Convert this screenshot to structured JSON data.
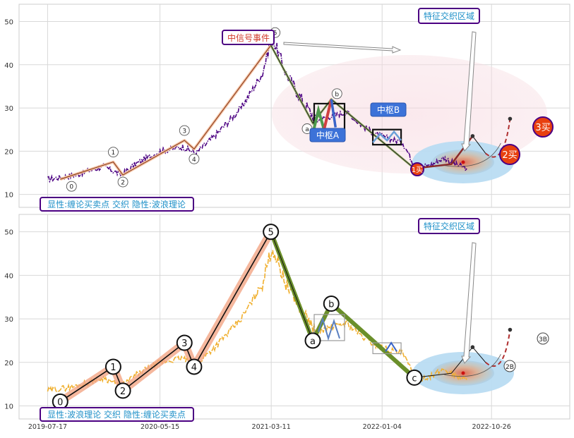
{
  "chart_data": [
    {
      "type": "line",
      "panel": "top",
      "ylim": [
        7,
        54
      ],
      "yticks": [
        10,
        20,
        30,
        40,
        50
      ],
      "xticks": [
        "2019-07-17",
        "2020-05-15",
        "2021-03-11",
        "2022-01-04",
        "2022-10-26"
      ],
      "price_series": {
        "name": "",
        "color": "#4b0082",
        "x": [
          "2019-07-17",
          "2019-10-01",
          "2019-12-15",
          "2020-02-01",
          "2020-03-10",
          "2020-05-15",
          "2020-07-15",
          "2020-08-20",
          "2020-10-15",
          "2020-12-20",
          "2021-02-15",
          "2021-03-05",
          "2021-03-15",
          "2021-04-20",
          "2021-06-01",
          "2021-07-10",
          "2021-08-15",
          "2021-10-01",
          "2021-11-10",
          "2021-12-15",
          "2022-01-20",
          "2022-03-01",
          "2022-04-05",
          "2022-05-20",
          "2022-06-20",
          "2022-07-20",
          "2022-08-20"
        ],
        "y": [
          13.5,
          14.5,
          16.5,
          14.5,
          17,
          20,
          21,
          19.5,
          24,
          30,
          38,
          44,
          46,
          38,
          32,
          27,
          28,
          29,
          26,
          24,
          23,
          22,
          16,
          17,
          18.5,
          17,
          16
        ]
      },
      "wave_points": [
        {
          "label": "0",
          "x": "2019-08-20",
          "y": 13.5
        },
        {
          "label": "1",
          "x": "2020-01-10",
          "y": 17.5
        },
        {
          "label": "2",
          "x": "2020-02-05",
          "y": 14.5
        },
        {
          "label": "3",
          "x": "2020-07-20",
          "y": 22.5
        },
        {
          "label": "4",
          "x": "2020-08-15",
          "y": 20.5
        },
        {
          "label": "5",
          "x": "2021-03-10",
          "y": 44.5
        },
        {
          "label": "a",
          "x": "2021-07-01",
          "y": 26.5
        },
        {
          "label": "b",
          "x": "2021-08-20",
          "y": 32.0
        },
        {
          "label": "c",
          "x": "2022-04-01",
          "y": 16.0
        }
      ],
      "future_path": [
        {
          "x": "2022-04-01",
          "y": 16.0
        },
        {
          "x": "2022-07-10",
          "y": 17.0
        },
        {
          "x": "2022-09-05",
          "y": 23.5
        },
        {
          "x": "2022-10-10",
          "y": 19.5
        },
        {
          "x": "2022-12-15",
          "y": 27.5
        }
      ],
      "annotations": {
        "event": "中信号事件",
        "zone": "特征交织区域",
        "pivot_a": "中枢A",
        "pivot_b": "中枢B",
        "buy1": "1买",
        "buy2": "2买",
        "buy3": "3买",
        "caption": "显性:缠论买卖点 交织 隐性:波浪理论"
      }
    },
    {
      "type": "line",
      "panel": "bottom",
      "ylim": [
        7,
        54
      ],
      "yticks": [
        10,
        20,
        30,
        40,
        50
      ],
      "xticks": [
        "2019-07-17",
        "2020-05-15",
        "2021-03-11",
        "2022-01-04",
        "2022-10-26"
      ],
      "price_series": {
        "name": "",
        "color": "#f0b030",
        "x": [
          "2019-07-17",
          "2019-10-01",
          "2019-12-15",
          "2020-02-01",
          "2020-03-10",
          "2020-05-15",
          "2020-07-15",
          "2020-08-20",
          "2020-10-15",
          "2020-12-20",
          "2021-02-15",
          "2021-03-05",
          "2021-03-15",
          "2021-04-20",
          "2021-06-01",
          "2021-07-10",
          "2021-08-15",
          "2021-10-01",
          "2021-11-10",
          "2021-12-15",
          "2022-01-20",
          "2022-03-01",
          "2022-04-05",
          "2022-05-20",
          "2022-06-20",
          "2022-07-20",
          "2022-08-20"
        ],
        "y": [
          13.5,
          14.5,
          16.5,
          14.5,
          17,
          20,
          21,
          19.5,
          24,
          30,
          38,
          44,
          46,
          38,
          32,
          27,
          28,
          29,
          26,
          24,
          23,
          22,
          16,
          17,
          18.5,
          17,
          16
        ]
      },
      "wave_points": [
        {
          "label": "0",
          "x": "2019-08-20",
          "y": 11.0
        },
        {
          "label": "1",
          "x": "2020-01-10",
          "y": 19.0
        },
        {
          "label": "2",
          "x": "2020-02-05",
          "y": 13.5
        },
        {
          "label": "3",
          "x": "2020-07-20",
          "y": 24.5
        },
        {
          "label": "4",
          "x": "2020-08-15",
          "y": 19.0
        },
        {
          "label": "5",
          "x": "2021-03-10",
          "y": 50.0
        },
        {
          "label": "a",
          "x": "2021-07-01",
          "y": 25.0
        },
        {
          "label": "b",
          "x": "2021-08-20",
          "y": 33.5
        },
        {
          "label": "c",
          "x": "2022-04-01",
          "y": 16.5
        }
      ],
      "future_path": [
        {
          "x": "2022-04-01",
          "y": 16.5
        },
        {
          "x": "2022-07-10",
          "y": 17.5
        },
        {
          "x": "2022-09-05",
          "y": 23.5
        },
        {
          "x": "2022-10-10",
          "y": 20.0
        },
        {
          "x": "2022-12-15",
          "y": 27.5
        }
      ],
      "annotations": {
        "zone": "特征交织区域",
        "c_label": "c",
        "label_2b": "2B",
        "label_3b": "3B",
        "caption": "显性:波浪理论 交织 隐性:缠论买卖点"
      }
    }
  ]
}
